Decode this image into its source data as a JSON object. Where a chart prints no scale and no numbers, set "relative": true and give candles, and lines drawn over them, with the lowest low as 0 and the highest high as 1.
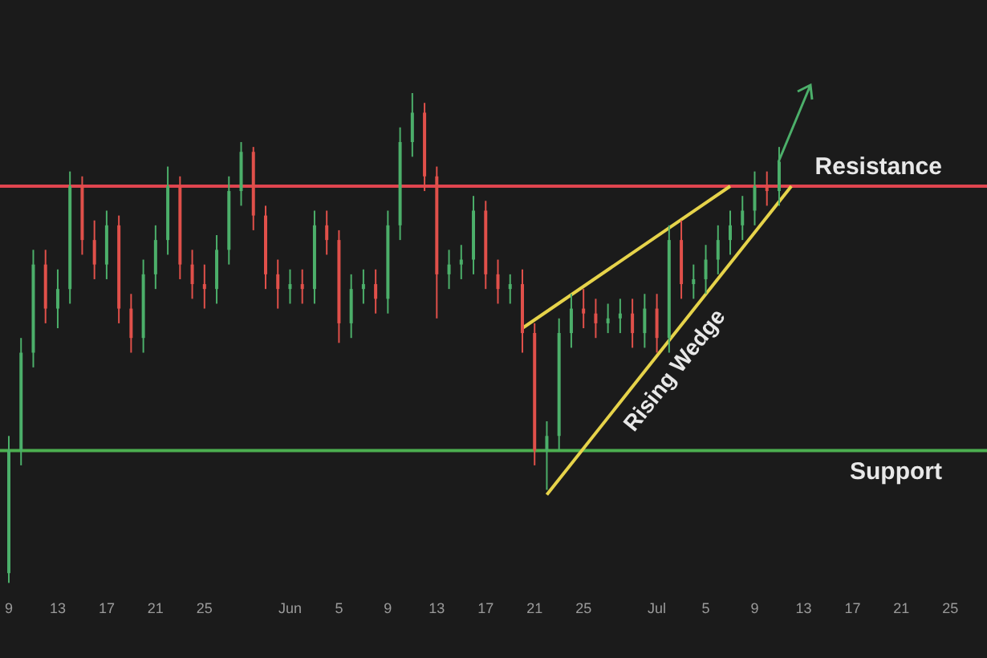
{
  "chart_data": {
    "type": "candlestick",
    "relative": true,
    "x": [
      "--05-09",
      "--05-10",
      "--05-11",
      "--05-12",
      "--05-13",
      "--05-14",
      "--05-15",
      "--05-16",
      "--05-17",
      "--05-18",
      "--05-19",
      "--05-20",
      "--05-21",
      "--05-22",
      "--05-23",
      "--05-24",
      "--05-25",
      "--05-26",
      "--05-27",
      "--05-28",
      "--05-29",
      "--05-30",
      "--05-31",
      "--06-01",
      "--06-02",
      "--06-03",
      "--06-04",
      "--06-05",
      "--06-06",
      "--06-07",
      "--06-08",
      "--06-09",
      "--06-10",
      "--06-11",
      "--06-12",
      "--06-13",
      "--06-14",
      "--06-15",
      "--06-16",
      "--06-17",
      "--06-18",
      "--06-19",
      "--06-20",
      "--06-21",
      "--06-22",
      "--06-23",
      "--06-24",
      "--06-25",
      "--06-26",
      "--06-27",
      "--06-28",
      "--06-29",
      "--06-30",
      "--07-01",
      "--07-02",
      "--07-03",
      "--07-04",
      "--07-05",
      "--07-06",
      "--07-07",
      "--07-08",
      "--07-09",
      "--07-10",
      "--07-11"
    ],
    "ohlc": [
      [
        0.02,
        0.3,
        0.0,
        0.27
      ],
      [
        0.27,
        0.5,
        0.24,
        0.47
      ],
      [
        0.47,
        0.68,
        0.44,
        0.65
      ],
      [
        0.65,
        0.68,
        0.53,
        0.56
      ],
      [
        0.56,
        0.64,
        0.52,
        0.6
      ],
      [
        0.6,
        0.84,
        0.57,
        0.81
      ],
      [
        0.81,
        0.83,
        0.67,
        0.7
      ],
      [
        0.7,
        0.74,
        0.62,
        0.65
      ],
      [
        0.65,
        0.76,
        0.62,
        0.73
      ],
      [
        0.73,
        0.75,
        0.53,
        0.56
      ],
      [
        0.56,
        0.59,
        0.47,
        0.5
      ],
      [
        0.5,
        0.66,
        0.47,
        0.63
      ],
      [
        0.63,
        0.73,
        0.6,
        0.7
      ],
      [
        0.7,
        0.85,
        0.67,
        0.81
      ],
      [
        0.81,
        0.83,
        0.62,
        0.65
      ],
      [
        0.65,
        0.68,
        0.58,
        0.61
      ],
      [
        0.61,
        0.65,
        0.56,
        0.6
      ],
      [
        0.6,
        0.71,
        0.57,
        0.68
      ],
      [
        0.68,
        0.83,
        0.65,
        0.8
      ],
      [
        0.8,
        0.9,
        0.77,
        0.88
      ],
      [
        0.88,
        0.89,
        0.72,
        0.75
      ],
      [
        0.75,
        0.77,
        0.6,
        0.63
      ],
      [
        0.63,
        0.66,
        0.56,
        0.6
      ],
      [
        0.6,
        0.64,
        0.57,
        0.61
      ],
      [
        0.61,
        0.64,
        0.57,
        0.6
      ],
      [
        0.6,
        0.76,
        0.57,
        0.73
      ],
      [
        0.73,
        0.76,
        0.67,
        0.7
      ],
      [
        0.7,
        0.72,
        0.49,
        0.53
      ],
      [
        0.53,
        0.63,
        0.5,
        0.6
      ],
      [
        0.6,
        0.64,
        0.57,
        0.61
      ],
      [
        0.61,
        0.64,
        0.55,
        0.58
      ],
      [
        0.58,
        0.76,
        0.55,
        0.73
      ],
      [
        0.73,
        0.93,
        0.7,
        0.9
      ],
      [
        0.9,
        1.0,
        0.87,
        0.96
      ],
      [
        0.96,
        0.98,
        0.8,
        0.83
      ],
      [
        0.83,
        0.85,
        0.54,
        0.63
      ],
      [
        0.63,
        0.68,
        0.6,
        0.65
      ],
      [
        0.65,
        0.69,
        0.62,
        0.66
      ],
      [
        0.66,
        0.79,
        0.63,
        0.76
      ],
      [
        0.76,
        0.78,
        0.6,
        0.63
      ],
      [
        0.63,
        0.66,
        0.57,
        0.6
      ],
      [
        0.6,
        0.63,
        0.57,
        0.61
      ],
      [
        0.61,
        0.64,
        0.47,
        0.51
      ],
      [
        0.51,
        0.53,
        0.24,
        0.27
      ],
      [
        0.27,
        0.33,
        0.19,
        0.3
      ],
      [
        0.3,
        0.54,
        0.27,
        0.51
      ],
      [
        0.51,
        0.59,
        0.48,
        0.56
      ],
      [
        0.56,
        0.6,
        0.52,
        0.55
      ],
      [
        0.55,
        0.58,
        0.5,
        0.53
      ],
      [
        0.53,
        0.57,
        0.51,
        0.54
      ],
      [
        0.54,
        0.58,
        0.51,
        0.55
      ],
      [
        0.55,
        0.58,
        0.48,
        0.51
      ],
      [
        0.51,
        0.59,
        0.48,
        0.56
      ],
      [
        0.56,
        0.59,
        0.47,
        0.5
      ],
      [
        0.5,
        0.73,
        0.47,
        0.7
      ],
      [
        0.7,
        0.74,
        0.58,
        0.61
      ],
      [
        0.61,
        0.65,
        0.58,
        0.62
      ],
      [
        0.62,
        0.69,
        0.59,
        0.66
      ],
      [
        0.66,
        0.73,
        0.63,
        0.7
      ],
      [
        0.7,
        0.76,
        0.67,
        0.73
      ],
      [
        0.73,
        0.79,
        0.7,
        0.76
      ],
      [
        0.76,
        0.84,
        0.73,
        0.81
      ],
      [
        0.81,
        0.84,
        0.77,
        0.8
      ],
      [
        0.8,
        0.89,
        0.77,
        0.86
      ]
    ],
    "xlim": [
      "--05-09",
      "--07-28"
    ],
    "xticks": [
      {
        "value": "--05-09",
        "label": "9"
      },
      {
        "value": "--05-13",
        "label": "13"
      },
      {
        "value": "--05-17",
        "label": "17"
      },
      {
        "value": "--05-21",
        "label": "21"
      },
      {
        "value": "--05-25",
        "label": "25"
      },
      {
        "value": "--06-01",
        "label": "Jun"
      },
      {
        "value": "--06-05",
        "label": "5"
      },
      {
        "value": "--06-09",
        "label": "9"
      },
      {
        "value": "--06-13",
        "label": "13"
      },
      {
        "value": "--06-17",
        "label": "17"
      },
      {
        "value": "--06-21",
        "label": "21"
      },
      {
        "value": "--06-25",
        "label": "25"
      },
      {
        "value": "--07-01",
        "label": "Jul"
      },
      {
        "value": "--07-05",
        "label": "5"
      },
      {
        "value": "--07-09",
        "label": "9"
      },
      {
        "value": "--07-13",
        "label": "13"
      },
      {
        "value": "--07-17",
        "label": "17"
      },
      {
        "value": "--07-21",
        "label": "21"
      },
      {
        "value": "--07-25",
        "label": "25"
      }
    ],
    "series": [
      {
        "type": "line",
        "color": "#e6d34a",
        "x": [
          "--06-20",
          "--07-07"
        ],
        "values": [
          0.52,
          0.81
        ]
      },
      {
        "type": "line",
        "color": "#e6d34a",
        "x": [
          "--06-22",
          "--07-12"
        ],
        "values": [
          0.18,
          0.81
        ]
      }
    ],
    "ref_lines": [
      {
        "axis": "y",
        "value": 0.81,
        "label": "Resistance",
        "color": "#e0454f"
      },
      {
        "axis": "y",
        "value": 0.27,
        "label": "Support",
        "color": "#4caf50"
      }
    ],
    "annotations": [
      "Rising Wedge"
    ]
  }
}
